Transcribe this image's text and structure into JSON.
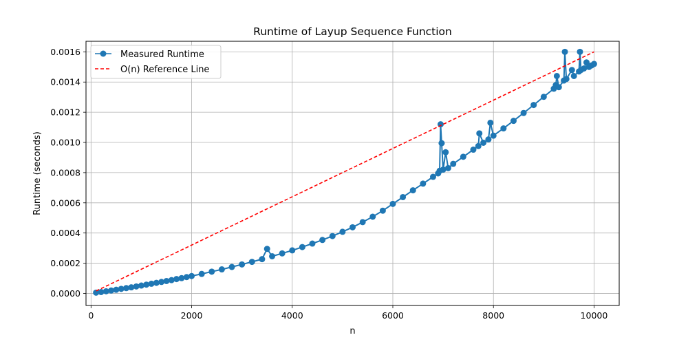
{
  "chart_data": {
    "type": "line",
    "title": "Runtime of Layup Sequence Function",
    "xlabel": "n",
    "ylabel": "Runtime (seconds)",
    "xlim": [
      -100,
      10500
    ],
    "ylim": [
      -8e-05,
      0.00167
    ],
    "x_ticks": [
      0,
      2000,
      4000,
      6000,
      8000,
      10000
    ],
    "x_tick_labels": [
      "0",
      "2000",
      "4000",
      "6000",
      "8000",
      "10000"
    ],
    "y_ticks": [
      0,
      0.0002,
      0.0004,
      0.0006,
      0.0008,
      0.001,
      0.0012,
      0.0014,
      0.0016
    ],
    "y_tick_labels": [
      "0.0000",
      "0.0002",
      "0.0004",
      "0.0006",
      "0.0008",
      "0.0010",
      "0.0012",
      "0.0014",
      "0.0016"
    ],
    "grid": true,
    "legend_position": "upper-left",
    "series": [
      {
        "name": "Measured Runtime",
        "style": "solid-line-circle-markers",
        "color": "#1f77b4",
        "x": [
          100,
          200,
          300,
          400,
          500,
          600,
          700,
          800,
          900,
          1000,
          1100,
          1200,
          1300,
          1400,
          1500,
          1600,
          1700,
          1800,
          1900,
          2000,
          2200,
          2400,
          2600,
          2800,
          3000,
          3200,
          3400,
          3500,
          3600,
          3800,
          4000,
          4200,
          4400,
          4600,
          4800,
          5000,
          5200,
          5400,
          5600,
          5800,
          6000,
          6200,
          6400,
          6600,
          6800,
          6900,
          6930,
          6950,
          6970,
          7000,
          7050,
          7100,
          7200,
          7400,
          7600,
          7700,
          7720,
          7800,
          7900,
          7940,
          8000,
          8200,
          8400,
          8600,
          8800,
          9000,
          9200,
          9240,
          9260,
          9300,
          9400,
          9420,
          9450,
          9560,
          9600,
          9700,
          9720,
          9740,
          9800,
          9850,
          9900,
          9950,
          10000
        ],
        "values": [
          5e-06,
          9e-06,
          1.4e-05,
          1.9e-05,
          2.4e-05,
          3e-05,
          3.5e-05,
          4e-05,
          4.6e-05,
          5.2e-05,
          5.8e-05,
          6.4e-05,
          7e-05,
          7.6e-05,
          8.2e-05,
          8.8e-05,
          9.5e-05,
          0.000101,
          0.000108,
          0.000115,
          0.000129,
          0.000144,
          0.000159,
          0.000175,
          0.000192,
          0.000209,
          0.000227,
          0.000295,
          0.000246,
          0.000265,
          0.000285,
          0.000307,
          0.00033,
          0.000354,
          0.00038,
          0.000408,
          0.000438,
          0.000472,
          0.000508,
          0.000548,
          0.000593,
          0.000638,
          0.000683,
          0.000727,
          0.000772,
          0.000795,
          0.000812,
          0.00112,
          0.000995,
          0.00082,
          0.000935,
          0.00083,
          0.000858,
          0.000905,
          0.000952,
          0.000976,
          0.00106,
          0.000998,
          0.00102,
          0.00113,
          0.001045,
          0.001093,
          0.001143,
          0.001195,
          0.001248,
          0.001302,
          0.001356,
          0.00138,
          0.00144,
          0.001366,
          0.00141,
          0.0016,
          0.00142,
          0.00148,
          0.00144,
          0.00147,
          0.0016,
          0.00148,
          0.00149,
          0.00153,
          0.0015,
          0.00151,
          0.00152
        ]
      },
      {
        "name": "O(n) Reference Line",
        "style": "dashed",
        "color": "#ff0000",
        "x": [
          100,
          10000
        ],
        "values": [
          1.6e-05,
          0.0016
        ]
      }
    ]
  }
}
